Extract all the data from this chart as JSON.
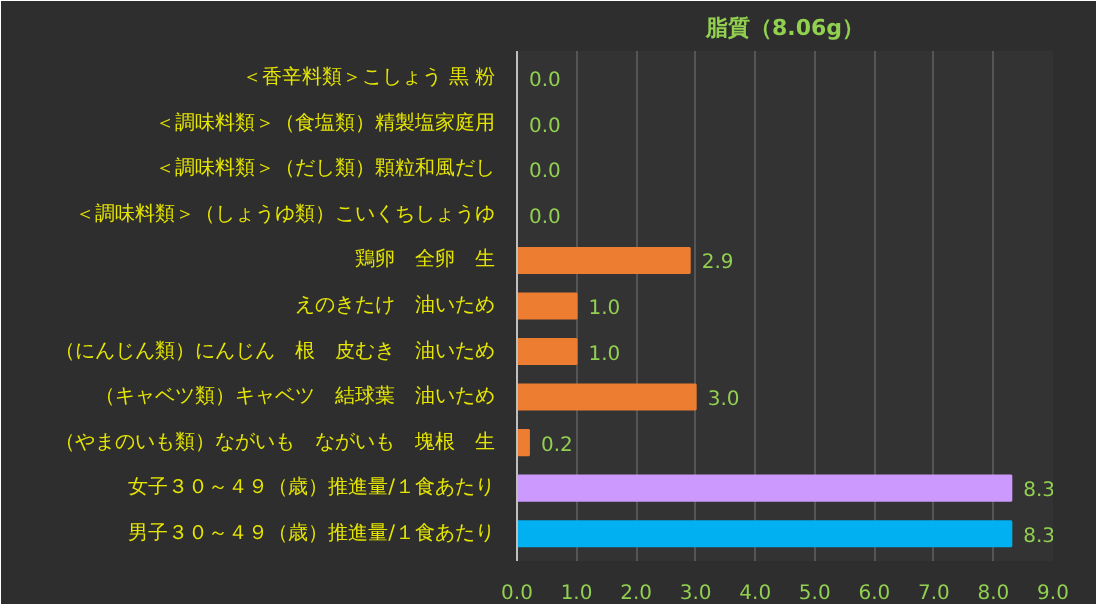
{
  "chart_data": {
    "type": "bar",
    "orientation": "horizontal",
    "title": "脂質（8.06g）",
    "categories": [
      "＜香辛料類＞こしょう 黒 粉",
      "＜調味料類＞（食塩類）精製塩家庭用",
      "＜調味料類＞（だし類）顆粒和風だし",
      "＜調味料類＞（しょうゆ類）こいくちしょうゆ",
      "鶏卵　全卵　生",
      "えのきたけ　油いため",
      "（にんじん類）にんじん　根　皮むき　油いため",
      "（キャベツ類）キャベツ　結球葉　油いため",
      "（やまのいも類）ながいも　ながいも　塊根　生",
      "女子３０～４９（歳）推進量/１食あたり",
      "男子３０～４９（歳）推進量/１食あたり"
    ],
    "values": [
      0.0,
      0.0,
      0.0,
      0.0,
      2.9,
      1.0,
      1.0,
      3.0,
      0.2,
      8.3,
      8.3
    ],
    "colors": [
      "#ed7d31",
      "#ed7d31",
      "#ed7d31",
      "#ed7d31",
      "#ed7d31",
      "#ed7d31",
      "#ed7d31",
      "#ed7d31",
      "#ed7d31",
      "#cc99ff",
      "#00b0f0"
    ],
    "xlim": [
      0,
      9
    ],
    "xticks": [
      {
        "value": 0,
        "label": "0.0"
      },
      {
        "value": 1,
        "label": "1.0"
      },
      {
        "value": 2,
        "label": "2.0"
      },
      {
        "value": 3,
        "label": "3.0"
      },
      {
        "value": 4,
        "label": "4.0"
      },
      {
        "value": 5,
        "label": "5.0"
      },
      {
        "value": 6,
        "label": "6.0"
      },
      {
        "value": 7,
        "label": "7.0"
      },
      {
        "value": 8,
        "label": "8.0"
      },
      {
        "value": 9,
        "label": "9.0"
      }
    ],
    "value_labels": [
      "0.0",
      "0.0",
      "0.0",
      "0.0",
      "2.9",
      "1.0",
      "1.0",
      "3.0",
      "0.2",
      "8.3",
      "8.3"
    ],
    "grid": "x"
  }
}
